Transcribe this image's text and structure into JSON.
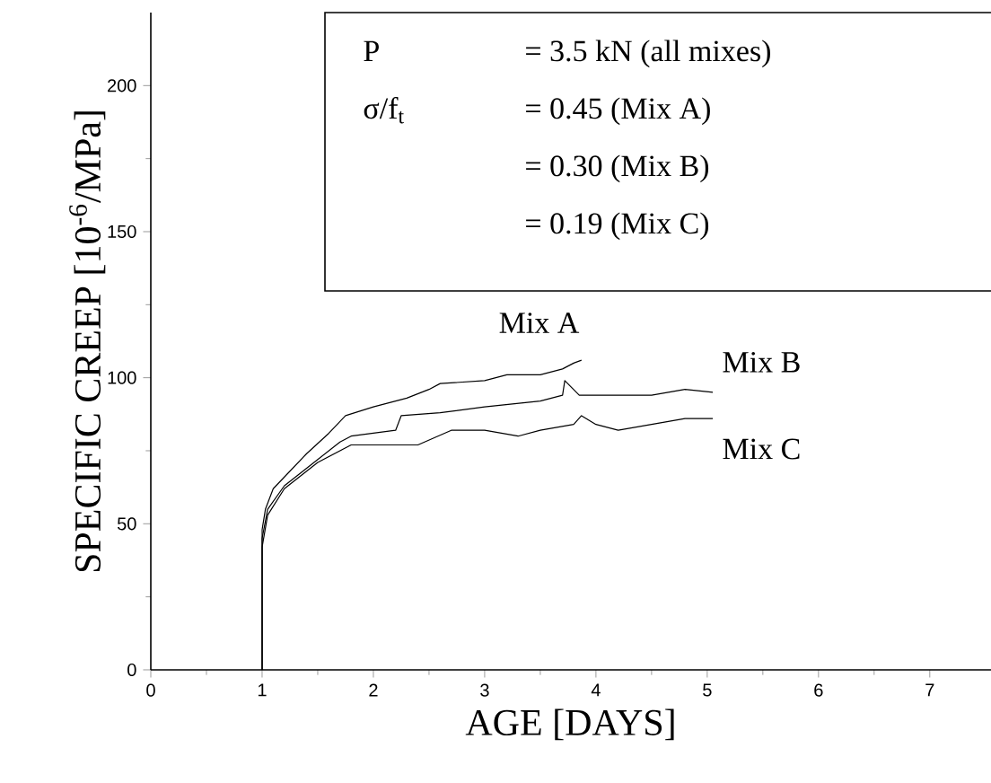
{
  "chart_data": {
    "type": "line",
    "xlabel": "AGE [DAYS]",
    "ylabel": "SPECIFIC CREEP [10$^{-6}$/MPa]",
    "xlim": [
      0,
      7.55
    ],
    "ylim": [
      0,
      225
    ],
    "xticks": [
      0,
      1,
      2,
      3,
      4,
      5,
      6,
      7
    ],
    "yticks": [
      0,
      50,
      100,
      150,
      200
    ],
    "grid": false,
    "legend": false,
    "marker": "none",
    "line_style": "solid",
    "annotations": [
      "P",
      "= 3.5 kN (all mixes)",
      "σ/f$_{t}$",
      "= 0.45 (Mix A)",
      "= 0.30 (Mix B)",
      "= 0.19 (Mix C)"
    ],
    "series": [
      {
        "name": "Mix A",
        "color": "#000000",
        "x": [
          1,
          1,
          1.03,
          1.1,
          1.2,
          1.4,
          1.6,
          1.75,
          2,
          2.3,
          2.5,
          2.6,
          3,
          3.2,
          3.5,
          3.7,
          3.8,
          3.87
        ],
        "values": [
          0,
          48,
          55,
          62,
          66,
          74,
          81,
          87,
          90,
          93,
          96,
          98,
          99,
          101,
          101,
          103,
          105,
          106
        ]
      },
      {
        "name": "Mix B",
        "color": "#000000",
        "x": [
          1,
          1,
          1.05,
          1.2,
          1.5,
          1.7,
          1.8,
          2.2,
          2.25,
          2.6,
          3,
          3.5,
          3.7,
          3.72,
          3.85,
          4.2,
          4.5,
          4.8,
          5.05
        ],
        "values": [
          0,
          45,
          55,
          63,
          72,
          78,
          80,
          82,
          87,
          88,
          90,
          92,
          94,
          99,
          94,
          94,
          94,
          96,
          95
        ]
      },
      {
        "name": "Mix C",
        "color": "#000000",
        "x": [
          1,
          1,
          1.05,
          1.2,
          1.5,
          1.8,
          2,
          2.4,
          2.7,
          2.8,
          3,
          3.3,
          3.5,
          3.8,
          3.87,
          4,
          4.2,
          4.5,
          4.8,
          5.05
        ],
        "values": [
          0,
          42,
          53,
          62,
          71,
          77,
          77,
          77,
          82,
          82,
          82,
          80,
          82,
          84,
          87,
          84,
          82,
          84,
          86,
          86
        ]
      }
    ]
  }
}
